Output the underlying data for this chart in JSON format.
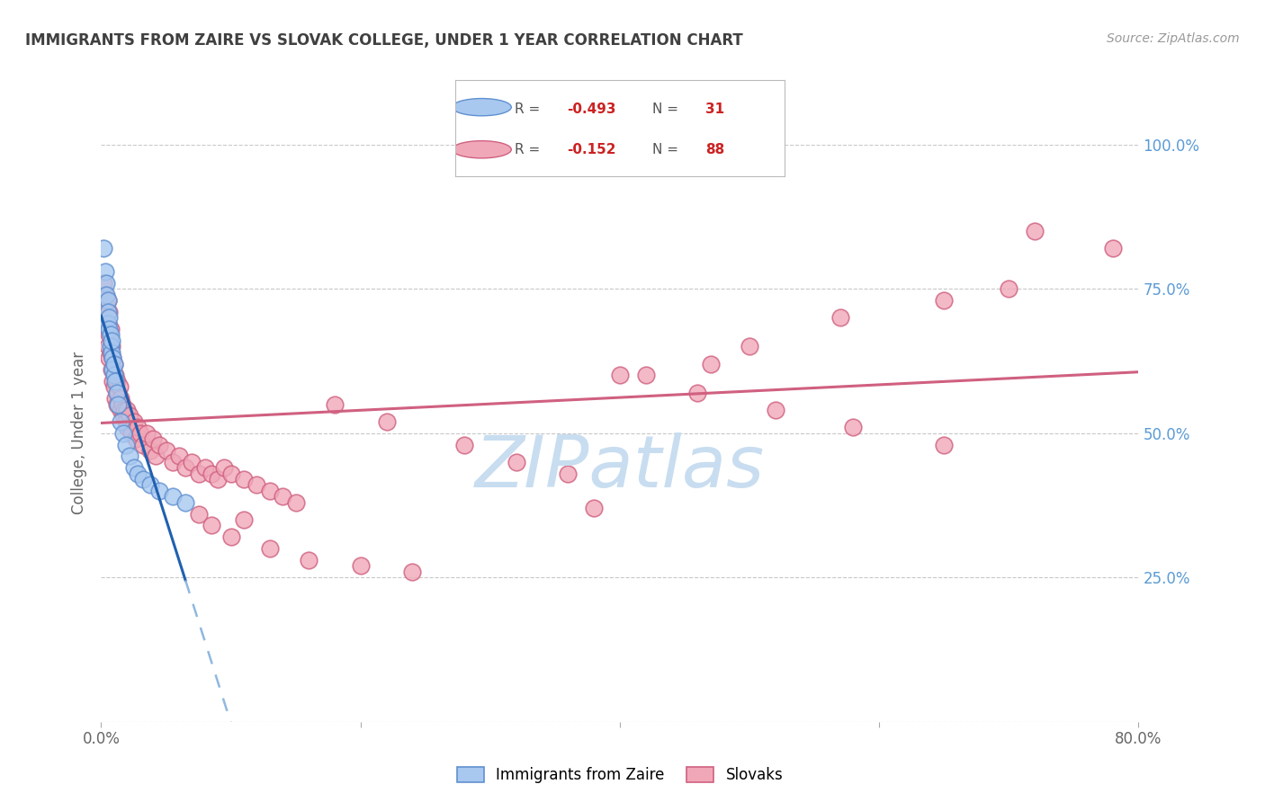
{
  "title": "IMMIGRANTS FROM ZAIRE VS SLOVAK COLLEGE, UNDER 1 YEAR CORRELATION CHART",
  "source_text": "Source: ZipAtlas.com",
  "ylabel": "College, Under 1 year",
  "legend_label1": "Immigrants from Zaire",
  "legend_label2": "Slovaks",
  "legend_R1_val": "-0.493",
  "legend_N1_val": "31",
  "legend_R2_val": "-0.152",
  "legend_N2_val": "88",
  "xmin": 0.0,
  "xmax": 0.8,
  "ymin": 0.0,
  "ymax": 1.0,
  "yticks": [
    0.0,
    0.25,
    0.5,
    0.75,
    1.0
  ],
  "ytick_labels": [
    "",
    "25.0%",
    "50.0%",
    "75.0%",
    "100.0%"
  ],
  "xticks": [
    0.0,
    0.2,
    0.4,
    0.6,
    0.8
  ],
  "background_color": "#ffffff",
  "grid_color": "#c8c8c8",
  "blue_fill": "#a8c8f0",
  "pink_fill": "#f0a8b8",
  "blue_edge": "#6090d0",
  "pink_edge": "#d06080",
  "blue_line_color": "#2060b0",
  "pink_line_color": "#d06080",
  "dashed_line_color": "#90b8e0",
  "watermark_color": "#c8ddf0",
  "right_label_color": "#5b9bd5",
  "title_color": "#404040",
  "zaire_x": [
    0.002,
    0.003,
    0.004,
    0.004,
    0.005,
    0.005,
    0.005,
    0.006,
    0.006,
    0.007,
    0.007,
    0.008,
    0.008,
    0.009,
    0.009,
    0.01,
    0.01,
    0.011,
    0.012,
    0.013,
    0.015,
    0.017,
    0.019,
    0.022,
    0.025,
    0.028,
    0.032,
    0.038,
    0.045,
    0.055,
    0.065
  ],
  "zaire_y": [
    0.82,
    0.78,
    0.76,
    0.74,
    0.73,
    0.71,
    0.69,
    0.7,
    0.68,
    0.67,
    0.65,
    0.64,
    0.66,
    0.63,
    0.61,
    0.6,
    0.62,
    0.59,
    0.57,
    0.55,
    0.52,
    0.5,
    0.48,
    0.46,
    0.44,
    0.43,
    0.42,
    0.41,
    0.4,
    0.39,
    0.38
  ],
  "slovak_x": [
    0.002,
    0.003,
    0.003,
    0.004,
    0.004,
    0.005,
    0.005,
    0.005,
    0.006,
    0.006,
    0.006,
    0.007,
    0.007,
    0.008,
    0.008,
    0.009,
    0.009,
    0.01,
    0.01,
    0.011,
    0.011,
    0.012,
    0.012,
    0.013,
    0.014,
    0.015,
    0.015,
    0.016,
    0.017,
    0.018,
    0.019,
    0.02,
    0.02,
    0.022,
    0.023,
    0.025,
    0.027,
    0.028,
    0.03,
    0.032,
    0.035,
    0.038,
    0.04,
    0.042,
    0.045,
    0.05,
    0.055,
    0.06,
    0.065,
    0.07,
    0.075,
    0.08,
    0.085,
    0.09,
    0.095,
    0.1,
    0.11,
    0.12,
    0.13,
    0.14,
    0.15,
    0.38,
    0.42,
    0.47,
    0.5,
    0.57,
    0.65,
    0.7,
    0.075,
    0.11,
    0.085,
    0.18,
    0.22,
    0.28,
    0.32,
    0.36,
    0.4,
    0.46,
    0.52,
    0.58,
    0.65,
    0.72,
    0.78,
    0.1,
    0.13,
    0.16,
    0.2,
    0.24
  ],
  "slovak_y": [
    0.76,
    0.74,
    0.7,
    0.72,
    0.68,
    0.73,
    0.69,
    0.65,
    0.71,
    0.67,
    0.63,
    0.68,
    0.64,
    0.65,
    0.61,
    0.63,
    0.59,
    0.62,
    0.58,
    0.6,
    0.56,
    0.59,
    0.55,
    0.57,
    0.58,
    0.56,
    0.54,
    0.55,
    0.53,
    0.54,
    0.52,
    0.54,
    0.51,
    0.53,
    0.5,
    0.52,
    0.49,
    0.51,
    0.5,
    0.48,
    0.5,
    0.47,
    0.49,
    0.46,
    0.48,
    0.47,
    0.45,
    0.46,
    0.44,
    0.45,
    0.43,
    0.44,
    0.43,
    0.42,
    0.44,
    0.43,
    0.42,
    0.41,
    0.4,
    0.39,
    0.38,
    0.37,
    0.6,
    0.62,
    0.65,
    0.7,
    0.73,
    0.75,
    0.36,
    0.35,
    0.34,
    0.55,
    0.52,
    0.48,
    0.45,
    0.43,
    0.6,
    0.57,
    0.54,
    0.51,
    0.48,
    0.85,
    0.82,
    0.32,
    0.3,
    0.28,
    0.27,
    0.26
  ]
}
